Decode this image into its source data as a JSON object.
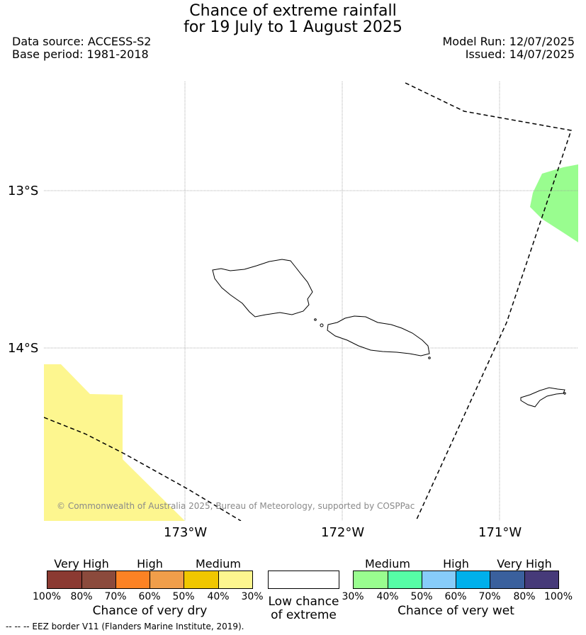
{
  "title": {
    "line1": "Chance of extreme rainfall",
    "line2": "for 19 July to 1 August 2025"
  },
  "header": {
    "data_source": "Data source: ACCESS-S2",
    "base_period": "Base period: 1981-2018",
    "model_run": "Model Run: 12/07/2025",
    "issued": "Issued: 14/07/2025"
  },
  "map": {
    "latitude_labels": [
      "13°S",
      "14°S"
    ],
    "longitude_labels": [
      "173°W",
      "172°W",
      "171°W"
    ],
    "credit": "© Commonwealth of Australia 2025, Bureau of Meteorology, supported by COSPPac",
    "dry_area_color": "#fdf68f",
    "wet_area_color": "#99fd8f"
  },
  "legend": {
    "dry": {
      "caption": "Chance of very dry",
      "categories": [
        "Very High",
        "High",
        "Medium"
      ],
      "ticks": [
        "100%",
        "80%",
        "70%",
        "60%",
        "50%",
        "40%",
        "30%"
      ],
      "colors": [
        "#8b3a32",
        "#8b4a3c",
        "#fc8224",
        "#f09e4a",
        "#f0c700",
        "#fdf68f"
      ]
    },
    "neutral": {
      "caption_line1": "Low chance",
      "caption_line2": "of extreme",
      "color": "#ffffff"
    },
    "wet": {
      "caption": "Chance of very wet",
      "categories": [
        "Medium",
        "High",
        "Very High"
      ],
      "ticks": [
        "30%",
        "40%",
        "50%",
        "60%",
        "70%",
        "80%",
        "100%"
      ],
      "colors": [
        "#99fd8f",
        "#56fda6",
        "#87ccfa",
        "#00b0eb",
        "#3a609d",
        "#463a79"
      ]
    }
  },
  "footnote": "--  --  -- EEZ border V11 (Flanders Marine Institute, 2019)."
}
